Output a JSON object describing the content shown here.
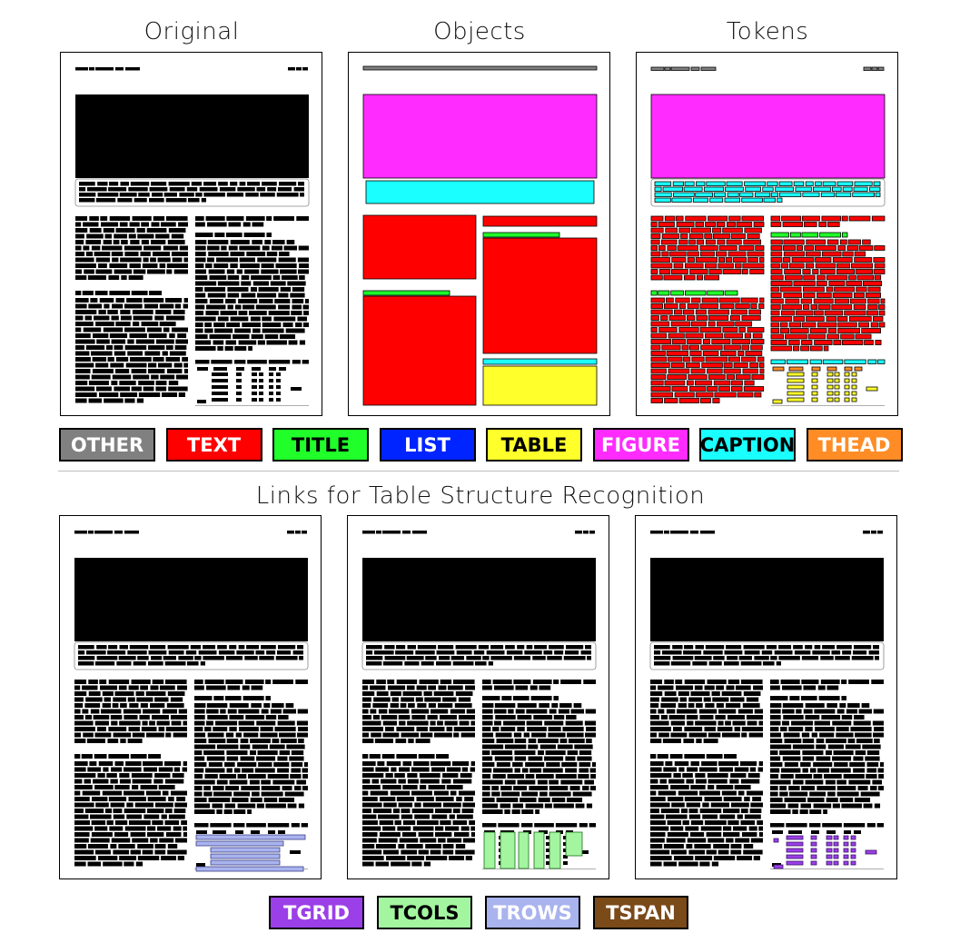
{
  "headings": {
    "original": "Original",
    "objects": "Objects",
    "tokens": "Tokens",
    "links": "Links for Table Structure Recognition"
  },
  "legend_top": [
    {
      "label": "OTHER",
      "color": "#808080",
      "text_color": "#ffffff"
    },
    {
      "label": "TEXT",
      "color": "#ff0000",
      "text_color": "#ffffff"
    },
    {
      "label": "TITLE",
      "color": "#20ff2a",
      "text_color": "#000000"
    },
    {
      "label": "LIST",
      "color": "#0024ff",
      "text_color": "#ffffff"
    },
    {
      "label": "TABLE",
      "color": "#ffff2b",
      "text_color": "#000000"
    },
    {
      "label": "FIGURE",
      "color": "#ff2bff",
      "text_color": "#ffffff"
    },
    {
      "label": "CAPTION",
      "color": "#1affff",
      "text_color": "#000000"
    },
    {
      "label": "THEAD",
      "color": "#ff8c25",
      "text_color": "#ffffff"
    }
  ],
  "legend_bottom": [
    {
      "label": "TGRID",
      "color": "#9b3fe8",
      "text_color": "#ffffff"
    },
    {
      "label": "TCOLS",
      "color": "#a3f5a0",
      "text_color": "#000000"
    },
    {
      "label": "TROWS",
      "color": "#a9b3ee",
      "text_color": "#ffffff"
    },
    {
      "label": "TSPAN",
      "color": "#7a4a19",
      "text_color": "#ffffff"
    }
  ],
  "colors": {
    "ink": "#000000",
    "other": "#808080",
    "text": "#ff0000",
    "title": "#20ff2a",
    "table": "#ffff2b",
    "figure": "#ff2bff",
    "caption": "#1affff",
    "thead": "#ff8c25",
    "tgrid": "#9b3fe8",
    "tcols": "#a3f5a0",
    "trows": "#a9b3ee"
  }
}
